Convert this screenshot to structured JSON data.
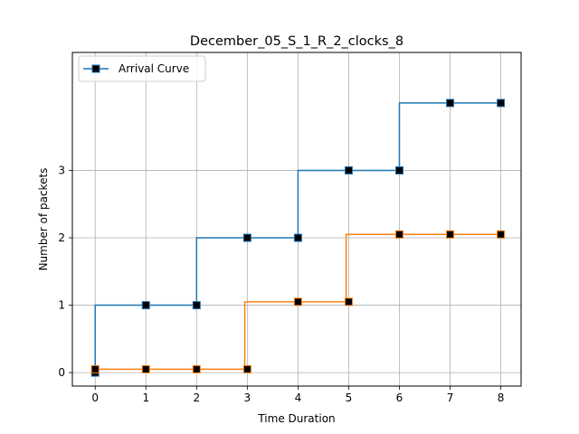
{
  "chart_data": {
    "type": "line",
    "title": "December_05_S_1_R_2_clocks_8",
    "xlabel": "Time Duration",
    "ylabel": "Number of packets",
    "xlim": [
      -0.45,
      8.4
    ],
    "ylim": [
      -0.2,
      4.75
    ],
    "xticks": [
      0,
      1,
      2,
      3,
      4,
      5,
      6,
      7,
      8
    ],
    "yticks": [
      0,
      1,
      2,
      3
    ],
    "grid": true,
    "legend_position": "top-left",
    "step": "post",
    "series": [
      {
        "name": "Arrival Curve",
        "color": "#1f77b4",
        "marker": "square",
        "x": [
          0,
          1,
          2,
          3,
          4,
          5,
          6,
          7,
          8
        ],
        "y": [
          0,
          1,
          1,
          2,
          2,
          3,
          3,
          4,
          4
        ],
        "steps": [
          [
            0,
            0
          ],
          [
            0,
            1
          ],
          [
            2,
            1
          ],
          [
            2,
            2
          ],
          [
            4,
            2
          ],
          [
            4,
            3
          ],
          [
            6,
            3
          ],
          [
            6,
            4
          ],
          [
            8,
            4
          ]
        ]
      },
      {
        "color": "#ff7f0e",
        "marker": "square",
        "x": [
          0,
          1,
          2,
          3,
          4,
          5,
          6,
          7,
          8
        ],
        "y": [
          0.05,
          0.05,
          0.05,
          0.05,
          1.05,
          1.05,
          2.05,
          2.05,
          2.05
        ],
        "steps": [
          [
            0,
            0.05
          ],
          [
            2.95,
            0.05
          ],
          [
            2.95,
            1.05
          ],
          [
            4.95,
            1.05
          ],
          [
            4.95,
            2.05
          ],
          [
            8,
            2.05
          ]
        ]
      }
    ]
  }
}
